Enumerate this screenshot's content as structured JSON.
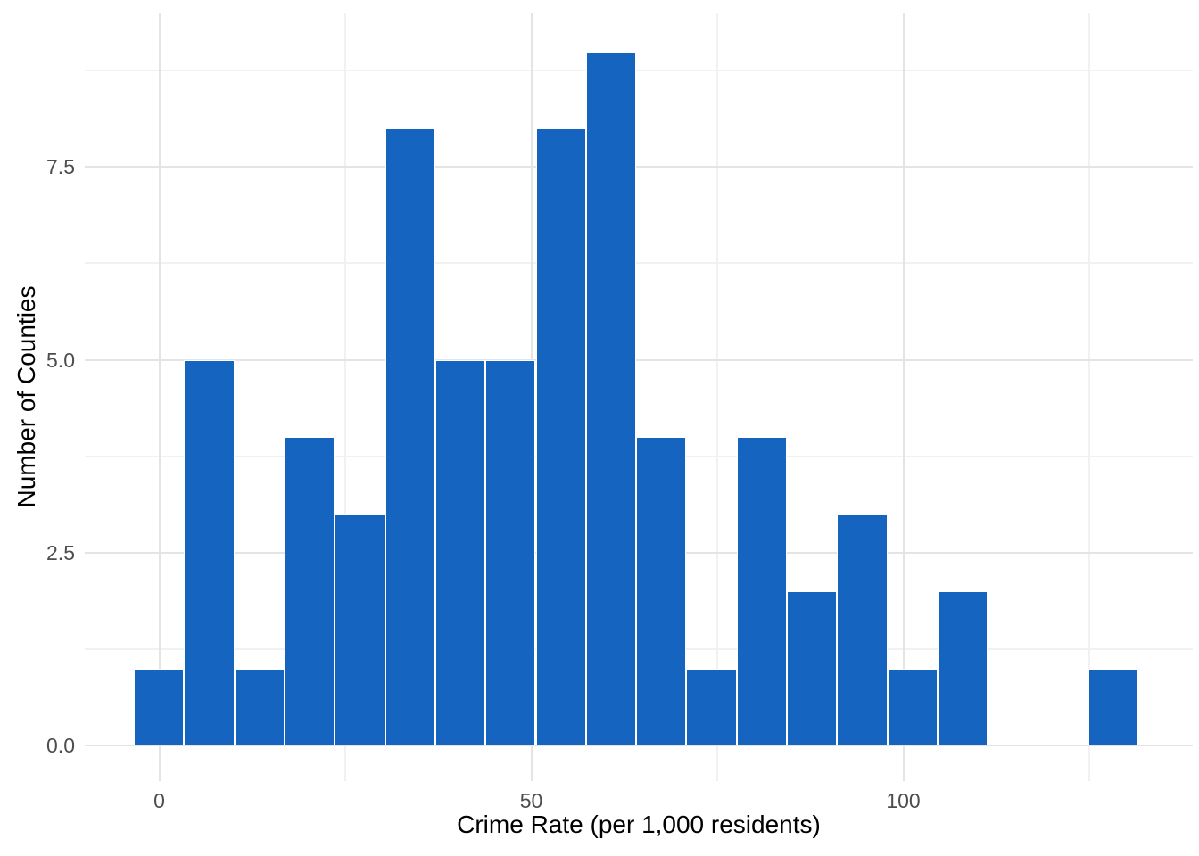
{
  "chart_data": {
    "type": "bar",
    "subtype": "histogram",
    "title": "",
    "xlabel": "Crime Rate (per 1,000 residents)",
    "ylabel": "Number of Counties",
    "bins": {
      "bin_start": -3.4,
      "bin_width": 6.75,
      "counts": [
        1,
        5,
        1,
        4,
        3,
        8,
        5,
        5,
        8,
        9,
        4,
        1,
        4,
        2,
        3,
        1,
        2,
        0,
        0,
        1
      ],
      "bin_centers": [
        0,
        6.7,
        13.5,
        20.2,
        27.0,
        33.7,
        40.5,
        47.2,
        54.0,
        60.7,
        67.5,
        74.2,
        81.0,
        87.7,
        94.4,
        101.2,
        107.9,
        114.7,
        121.4,
        128.2
      ]
    },
    "total_count": 67,
    "x_axis": {
      "label": "Crime Rate (per 1,000 residents)",
      "tick_labels": [
        "0",
        "50",
        "100"
      ],
      "tick_values": [
        0,
        50,
        100
      ],
      "minor_tick_values": [
        25,
        75,
        125
      ],
      "range": [
        -10,
        139
      ]
    },
    "y_axis": {
      "label": "Number of Counties",
      "tick_labels": [
        "0.0",
        "2.5",
        "5.0",
        "7.5"
      ],
      "tick_values": [
        0,
        2.5,
        5,
        7.5
      ],
      "minor_tick_values": [
        1.25,
        3.75,
        6.25,
        8.75
      ],
      "range": [
        -0.45,
        9.45
      ]
    },
    "legend": "none",
    "grid": "on",
    "colors": {
      "bar_fill": "#1565C0",
      "bar_border": "#FFFFFF",
      "grid_major": "#E4E4E4",
      "grid_minor": "#F1F1F1",
      "tick_label": "#4D4D4D",
      "axis_title": "#000000",
      "background": "#FFFFFF"
    }
  }
}
